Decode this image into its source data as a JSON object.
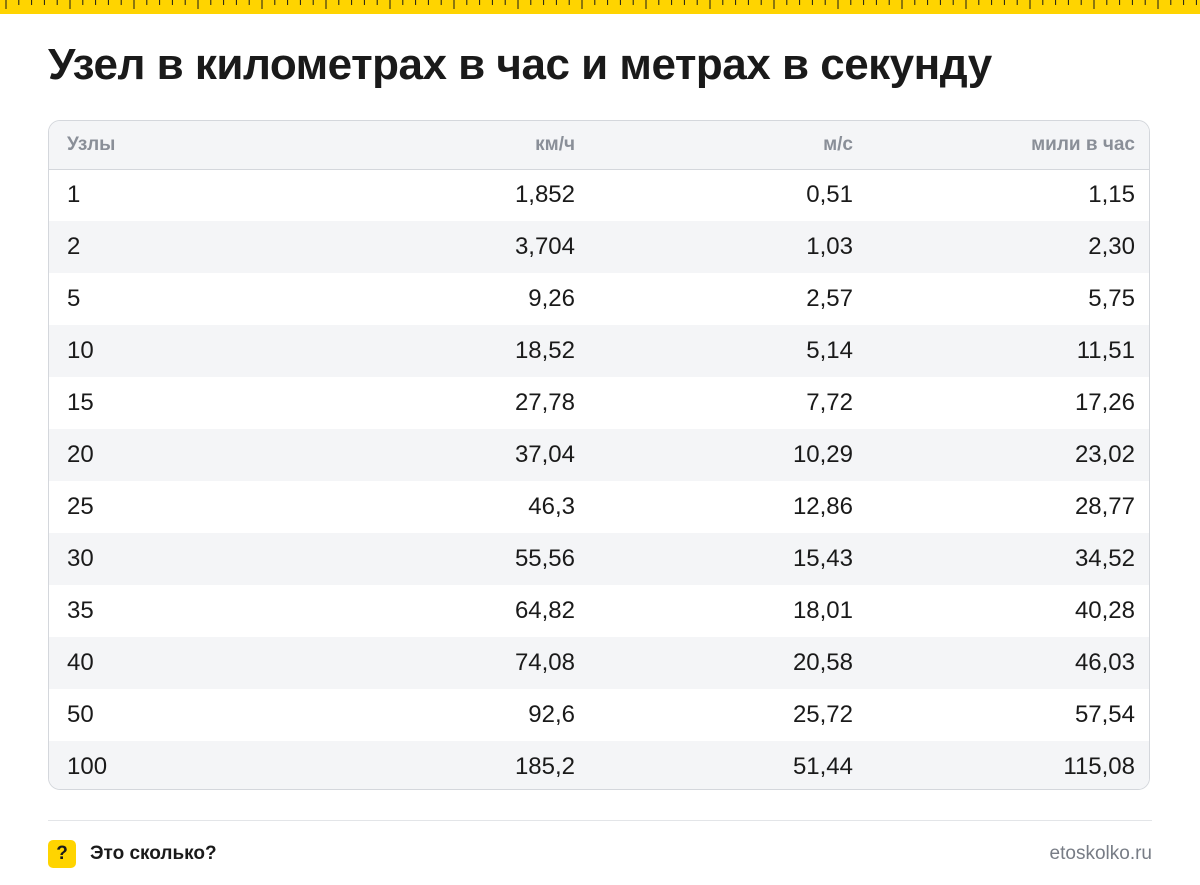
{
  "title": "Узел в километрах в час и метрах в секунду",
  "table": {
    "headers": [
      "Узлы",
      "км/ч",
      "м/с",
      "мили в час"
    ],
    "rows": [
      [
        "1",
        "1,852",
        "0,51",
        "1,15"
      ],
      [
        "2",
        "3,704",
        "1,03",
        "2,30"
      ],
      [
        "5",
        "9,26",
        "2,57",
        "5,75"
      ],
      [
        "10",
        "18,52",
        "5,14",
        "11,51"
      ],
      [
        "15",
        "27,78",
        "7,72",
        "17,26"
      ],
      [
        "20",
        "37,04",
        "10,29",
        "23,02"
      ],
      [
        "25",
        "46,3",
        "12,86",
        "28,77"
      ],
      [
        "30",
        "55,56",
        "15,43",
        "34,52"
      ],
      [
        "35",
        "64,82",
        "18,01",
        "40,28"
      ],
      [
        "40",
        "74,08",
        "20,58",
        "46,03"
      ],
      [
        "50",
        "92,6",
        "25,72",
        "57,54"
      ],
      [
        "100",
        "185,2",
        "51,44",
        "115,08"
      ]
    ]
  },
  "footer": {
    "badge": "?",
    "brand": "Это сколько?",
    "site": "etoskolko.ru"
  },
  "colors": {
    "accent": "#ffd400",
    "header_text": "#8a8f98",
    "stripe": "#f4f5f7"
  },
  "icons": {
    "ruler": "ruler-ticks",
    "badge": "question-mark-badge"
  }
}
